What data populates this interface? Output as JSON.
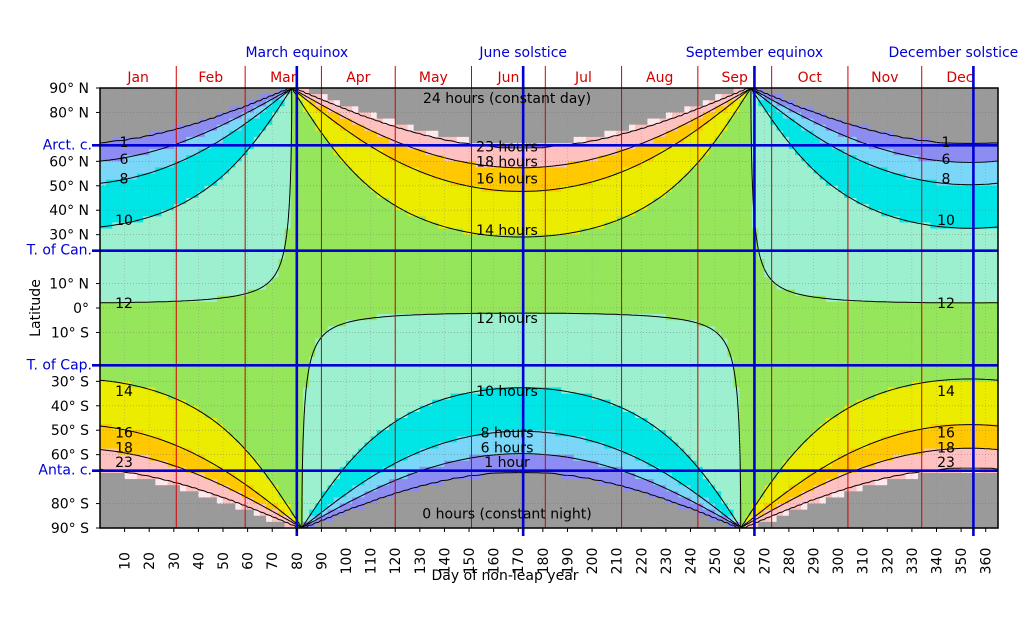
{
  "chart_data": {
    "type": "area",
    "title": "",
    "xlabel": "Day of non-leap year",
    "ylabel": "Latitude",
    "xlim": [
      0,
      365
    ],
    "ylim": [
      -90,
      90
    ],
    "x_ticks": [
      10,
      20,
      30,
      40,
      50,
      60,
      70,
      80,
      90,
      100,
      110,
      120,
      130,
      140,
      150,
      160,
      170,
      180,
      190,
      200,
      210,
      220,
      230,
      240,
      250,
      260,
      270,
      280,
      290,
      300,
      310,
      320,
      330,
      340,
      350,
      360
    ],
    "y_ticks": [
      {
        "value": 90,
        "label": "90° N"
      },
      {
        "value": 80,
        "label": "80° N"
      },
      {
        "value": 60,
        "label": "60° N"
      },
      {
        "value": 50,
        "label": "50° N"
      },
      {
        "value": 40,
        "label": "40° N"
      },
      {
        "value": 30,
        "label": "30° N"
      },
      {
        "value": 10,
        "label": "10° N"
      },
      {
        "value": 0,
        "label": "0°"
      },
      {
        "value": -10,
        "label": "10° S"
      },
      {
        "value": -30,
        "label": "30° S"
      },
      {
        "value": -40,
        "label": "40° S"
      },
      {
        "value": -50,
        "label": "50° S"
      },
      {
        "value": -60,
        "label": "60° S"
      },
      {
        "value": -80,
        "label": "80° S"
      },
      {
        "value": -90,
        "label": "90° S"
      }
    ],
    "months": [
      {
        "label": "Jan",
        "start": 1,
        "end": 31
      },
      {
        "label": "Feb",
        "start": 32,
        "end": 59
      },
      {
        "label": "Mar",
        "start": 60,
        "end": 90
      },
      {
        "label": "Apr",
        "start": 91,
        "end": 120
      },
      {
        "label": "May",
        "start": 121,
        "end": 151
      },
      {
        "label": "Jun",
        "start": 152,
        "end": 181
      },
      {
        "label": "Jul",
        "start": 182,
        "end": 212
      },
      {
        "label": "Aug",
        "start": 213,
        "end": 243
      },
      {
        "label": "Sep",
        "start": 244,
        "end": 273
      },
      {
        "label": "Oct",
        "start": 274,
        "end": 304
      },
      {
        "label": "Nov",
        "start": 305,
        "end": 334
      },
      {
        "label": "Dec",
        "start": 335,
        "end": 365
      }
    ],
    "events": [
      {
        "label": "March equinox",
        "day": 80
      },
      {
        "label": "June solstice",
        "day": 172
      },
      {
        "label": "September equinox",
        "day": 266
      },
      {
        "label": "December solstice",
        "day": 355
      }
    ],
    "zones": [
      {
        "label": "Arct. c.",
        "lat": 66.56
      },
      {
        "label": "T. of Can.",
        "lat": 23.44
      },
      {
        "label": "T. of Cap.",
        "lat": -23.44
      },
      {
        "label": "Anta. c.",
        "lat": -66.56
      }
    ],
    "day_length_bands": [
      {
        "min": 0,
        "max": 1,
        "color": "#9a9a9a"
      },
      {
        "min": 1,
        "max": 6,
        "color": "#8c8cf2"
      },
      {
        "min": 6,
        "max": 8,
        "color": "#7ad7f8"
      },
      {
        "min": 8,
        "max": 10,
        "color": "#00e6e6"
      },
      {
        "min": 10,
        "max": 12,
        "color": "#9cf0cf"
      },
      {
        "min": 12,
        "max": 14,
        "color": "#96e65c"
      },
      {
        "min": 14,
        "max": 16,
        "color": "#ecec00"
      },
      {
        "min": 16,
        "max": 18,
        "color": "#ffc800"
      },
      {
        "min": 18,
        "max": 23,
        "color": "#ffc0c0"
      },
      {
        "min": 23,
        "max": 24,
        "color": "#ffe8ec"
      },
      {
        "min": 24,
        "max": 24,
        "color": "#9a9a9a"
      }
    ],
    "contours_hours": [
      1,
      6,
      8,
      10,
      12,
      14,
      16,
      18,
      23
    ],
    "center_labels": [
      {
        "text": "24 hours (constant day)",
        "lat": 86
      },
      {
        "text": "23 hours",
        "lat": 66
      },
      {
        "text": "18 hours",
        "lat": 60
      },
      {
        "text": "16 hours",
        "lat": 53
      },
      {
        "text": "14 hours",
        "lat": 32
      },
      {
        "text": "12 hours",
        "lat": -4
      },
      {
        "text": "10 hours",
        "lat": -34
      },
      {
        "text": "8 hours",
        "lat": -51
      },
      {
        "text": "6 hours",
        "lat": -57
      },
      {
        "text": "1 hour",
        "lat": -63
      },
      {
        "text": "0 hours (constant night)",
        "lat": -84
      }
    ],
    "side_labels": [
      {
        "text": "1",
        "lat": 68
      },
      {
        "text": "6",
        "lat": 61
      },
      {
        "text": "8",
        "lat": 53
      },
      {
        "text": "10",
        "lat": 36
      },
      {
        "text": "12",
        "lat": 2
      },
      {
        "text": "14",
        "lat": -34
      },
      {
        "text": "16",
        "lat": -51
      },
      {
        "text": "18",
        "lat": -57
      },
      {
        "text": "23",
        "lat": -63
      }
    ],
    "colors": {
      "month_lines": "#d40000",
      "event_lines": "#0000d4",
      "contour": "#000000"
    }
  }
}
